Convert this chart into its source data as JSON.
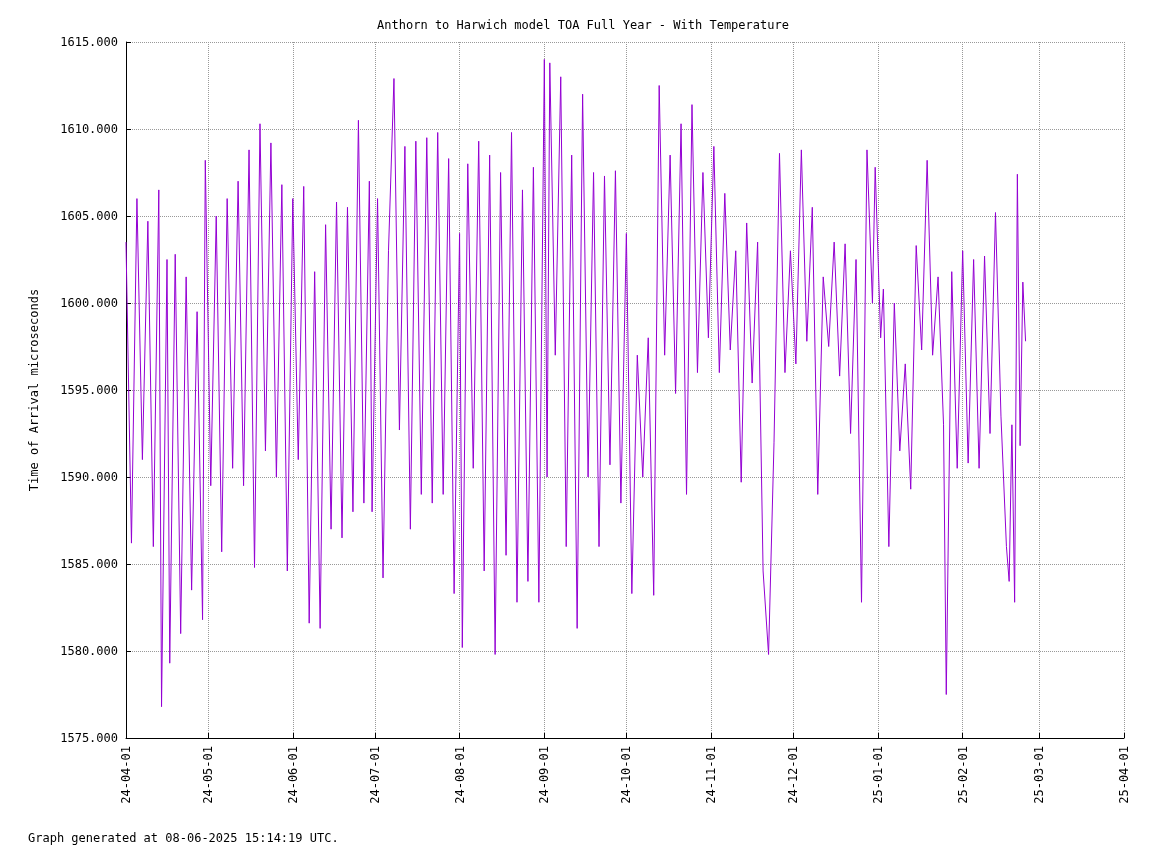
{
  "chart_data": {
    "type": "line",
    "title": "Anthorn to Harwich model TOA Full Year - With Temperature",
    "ylabel": "Time of Arrival microseconds",
    "annotations": [
      "Graph generated at 08-06-2025 15:14:19 UTC."
    ],
    "color": "#9400d3",
    "grid": true,
    "marker": "none",
    "line_style": "solid",
    "xlim": [
      "2024-04-01",
      "2025-04-01"
    ],
    "xticks": [
      {
        "value": "2024-04-01",
        "label": "24-04-01"
      },
      {
        "value": "2024-05-01",
        "label": "24-05-01"
      },
      {
        "value": "2024-06-01",
        "label": "24-06-01"
      },
      {
        "value": "2024-07-01",
        "label": "24-07-01"
      },
      {
        "value": "2024-08-01",
        "label": "24-08-01"
      },
      {
        "value": "2024-09-01",
        "label": "24-09-01"
      },
      {
        "value": "2024-10-01",
        "label": "24-10-01"
      },
      {
        "value": "2024-11-01",
        "label": "24-11-01"
      },
      {
        "value": "2024-12-01",
        "label": "24-12-01"
      },
      {
        "value": "2025-01-01",
        "label": "25-01-01"
      },
      {
        "value": "2025-02-01",
        "label": "25-02-01"
      },
      {
        "value": "2025-03-01",
        "label": "25-03-01"
      },
      {
        "value": "2025-04-01",
        "label": "25-04-01"
      }
    ],
    "ylim": [
      1575,
      1615
    ],
    "yticks": [
      {
        "value": 1575,
        "label": "1575.000"
      },
      {
        "value": 1580,
        "label": "1580.000"
      },
      {
        "value": 1585,
        "label": "1585.000"
      },
      {
        "value": 1590,
        "label": "1590.000"
      },
      {
        "value": 1595,
        "label": "1595.000"
      },
      {
        "value": 1600,
        "label": "1600.000"
      },
      {
        "value": 1605,
        "label": "1605.000"
      },
      {
        "value": 1610,
        "label": "1610.000"
      },
      {
        "value": 1615,
        "label": "1615.000"
      }
    ],
    "x": [
      "2024-04-01",
      "2024-04-03",
      "2024-04-05",
      "2024-04-07",
      "2024-04-09",
      "2024-04-11",
      "2024-04-13",
      "2024-04-14",
      "2024-04-16",
      "2024-04-17",
      "2024-04-19",
      "2024-04-21",
      "2024-04-23",
      "2024-04-25",
      "2024-04-27",
      "2024-04-29",
      "2024-04-30",
      "2024-05-02",
      "2024-05-04",
      "2024-05-06",
      "2024-05-08",
      "2024-05-10",
      "2024-05-12",
      "2024-05-14",
      "2024-05-16",
      "2024-05-18",
      "2024-05-20",
      "2024-05-22",
      "2024-05-24",
      "2024-05-26",
      "2024-05-28",
      "2024-05-30",
      "2024-06-01",
      "2024-06-03",
      "2024-06-05",
      "2024-06-07",
      "2024-06-09",
      "2024-06-11",
      "2024-06-13",
      "2024-06-15",
      "2024-06-17",
      "2024-06-19",
      "2024-06-21",
      "2024-06-23",
      "2024-06-25",
      "2024-06-27",
      "2024-06-29",
      "2024-06-30",
      "2024-07-02",
      "2024-07-04",
      "2024-07-06",
      "2024-07-08",
      "2024-07-10",
      "2024-07-12",
      "2024-07-14",
      "2024-07-16",
      "2024-07-18",
      "2024-07-20",
      "2024-07-22",
      "2024-07-24",
      "2024-07-26",
      "2024-07-28",
      "2024-07-30",
      "2024-08-01",
      "2024-08-02",
      "2024-08-04",
      "2024-08-06",
      "2024-08-08",
      "2024-08-10",
      "2024-08-12",
      "2024-08-14",
      "2024-08-16",
      "2024-08-18",
      "2024-08-20",
      "2024-08-22",
      "2024-08-24",
      "2024-08-26",
      "2024-08-28",
      "2024-08-30",
      "2024-09-01",
      "2024-09-02",
      "2024-09-03",
      "2024-09-05",
      "2024-09-07",
      "2024-09-09",
      "2024-09-11",
      "2024-09-13",
      "2024-09-15",
      "2024-09-17",
      "2024-09-19",
      "2024-09-21",
      "2024-09-23",
      "2024-09-25",
      "2024-09-27",
      "2024-09-29",
      "2024-10-01",
      "2024-10-03",
      "2024-10-05",
      "2024-10-07",
      "2024-10-09",
      "2024-10-11",
      "2024-10-13",
      "2024-10-15",
      "2024-10-17",
      "2024-10-19",
      "2024-10-21",
      "2024-10-23",
      "2024-10-25",
      "2024-10-27",
      "2024-10-29",
      "2024-10-31",
      "2024-11-02",
      "2024-11-04",
      "2024-11-06",
      "2024-11-08",
      "2024-11-10",
      "2024-11-12",
      "2024-11-14",
      "2024-11-16",
      "2024-11-18",
      "2024-11-20",
      "2024-11-22",
      "2024-11-24",
      "2024-11-26",
      "2024-11-28",
      "2024-11-30",
      "2024-12-02",
      "2024-12-04",
      "2024-12-06",
      "2024-12-08",
      "2024-12-10",
      "2024-12-12",
      "2024-12-14",
      "2024-12-16",
      "2024-12-18",
      "2024-12-20",
      "2024-12-22",
      "2024-12-24",
      "2024-12-26",
      "2024-12-28",
      "2024-12-30",
      "2024-12-31",
      "2025-01-02",
      "2025-01-03",
      "2025-01-05",
      "2025-01-07",
      "2025-01-09",
      "2025-01-11",
      "2025-01-13",
      "2025-01-15",
      "2025-01-17",
      "2025-01-19",
      "2025-01-21",
      "2025-01-23",
      "2025-01-25",
      "2025-01-26",
      "2025-01-28",
      "2025-01-30",
      "2025-02-01",
      "2025-02-03",
      "2025-02-05",
      "2025-02-07",
      "2025-02-09",
      "2025-02-11",
      "2025-02-13",
      "2025-02-15",
      "2025-02-17",
      "2025-02-18",
      "2025-02-19",
      "2025-02-20",
      "2025-02-21",
      "2025-02-22",
      "2025-02-23",
      "2025-02-24"
    ],
    "values": [
      1603.5,
      1586.2,
      1606,
      1591,
      1604.7,
      1586,
      1606.5,
      1576.8,
      1602.5,
      1579.3,
      1602.8,
      1581,
      1601.5,
      1583.5,
      1599.5,
      1581.8,
      1608.2,
      1589.5,
      1605,
      1585.7,
      1606,
      1590.5,
      1607,
      1589.5,
      1608.8,
      1584.8,
      1610.3,
      1591.5,
      1609.2,
      1590,
      1606.8,
      1584.6,
      1606,
      1591,
      1606.7,
      1581.6,
      1601.8,
      1581.3,
      1604.5,
      1587,
      1605.8,
      1586.5,
      1605.5,
      1588,
      1610.5,
      1588.5,
      1607,
      1588,
      1606,
      1584.2,
      1603,
      1612.9,
      1592.7,
      1609,
      1587,
      1609.3,
      1589,
      1609.5,
      1588.5,
      1609.8,
      1589,
      1608.3,
      1583.3,
      1604,
      1580.2,
      1608,
      1590.5,
      1609.3,
      1584.6,
      1608.5,
      1579.8,
      1607.5,
      1585.5,
      1609.8,
      1582.8,
      1606.5,
      1584,
      1607.8,
      1582.8,
      1614,
      1590,
      1613.8,
      1597,
      1613,
      1586,
      1608.5,
      1581.3,
      1612,
      1590,
      1607.5,
      1586,
      1607.3,
      1590.7,
      1607.6,
      1588.5,
      1604,
      1583.3,
      1597,
      1590,
      1598,
      1583.2,
      1612.5,
      1597,
      1608.5,
      1594.8,
      1610.3,
      1589,
      1611.4,
      1596,
      1607.5,
      1598,
      1609,
      1596,
      1606.3,
      1597.3,
      1603,
      1589.7,
      1604.6,
      1595.4,
      1603.5,
      1584.6,
      1579.8,
      1592,
      1608.6,
      1596,
      1603,
      1596.5,
      1608.8,
      1597.8,
      1605.5,
      1589,
      1601.5,
      1597.5,
      1603.5,
      1595.8,
      1603.4,
      1592.5,
      1602.5,
      1582.8,
      1608.8,
      1600,
      1607.8,
      1598,
      1600.8,
      1586,
      1600,
      1591.5,
      1596.5,
      1589.3,
      1603.3,
      1597.3,
      1608.2,
      1597,
      1601.5,
      1593,
      1577.5,
      1601.8,
      1590.5,
      1603,
      1590.8,
      1602.5,
      1590.5,
      1602.7,
      1592.5,
      1605.2,
      1593.5,
      1586,
      1584,
      1593,
      1582.8,
      1607.4,
      1591.8,
      1601.2,
      1597.8
    ]
  }
}
